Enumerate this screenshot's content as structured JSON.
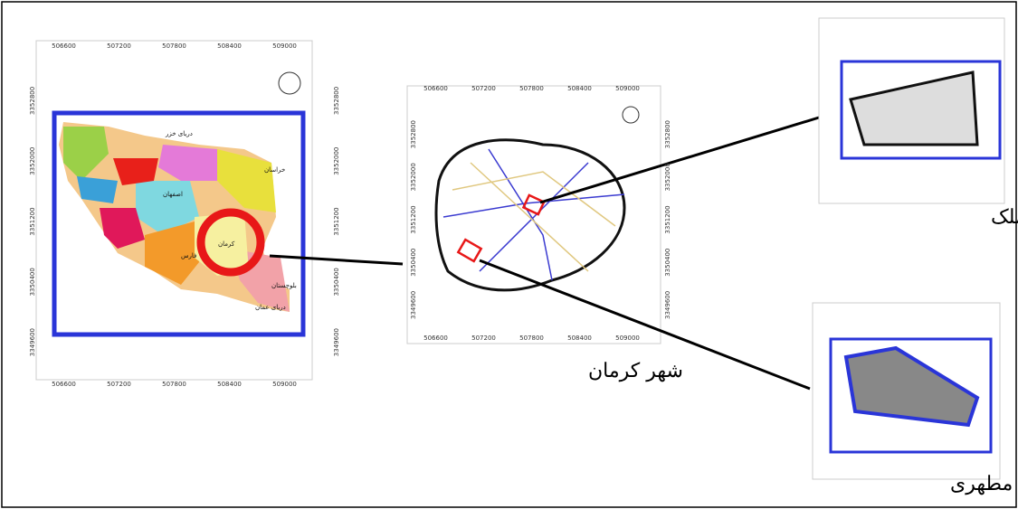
{
  "main_map": {
    "x_labels": [
      "506600",
      "507200",
      "507800",
      "508400",
      "509000"
    ],
    "y_labels": [
      "3352800",
      "3352000",
      "3351200",
      "3350400",
      "3349600"
    ],
    "places": [
      "کرمان",
      "خراسان",
      "بلوچستان",
      "دریای عمان",
      "دریای خزر",
      "اصفهان",
      "فارس"
    ]
  },
  "city_map": {
    "title": "شهر کرمان",
    "x_labels": [
      "506600",
      "507200",
      "507800",
      "508400",
      "509000"
    ],
    "y_labels": [
      "3352800",
      "3352000",
      "3351200",
      "3350400",
      "3349600"
    ]
  },
  "neighborhoods": [
    {
      "label": "محله مسجد ملک"
    },
    {
      "label": "محله مطهری"
    }
  ]
}
